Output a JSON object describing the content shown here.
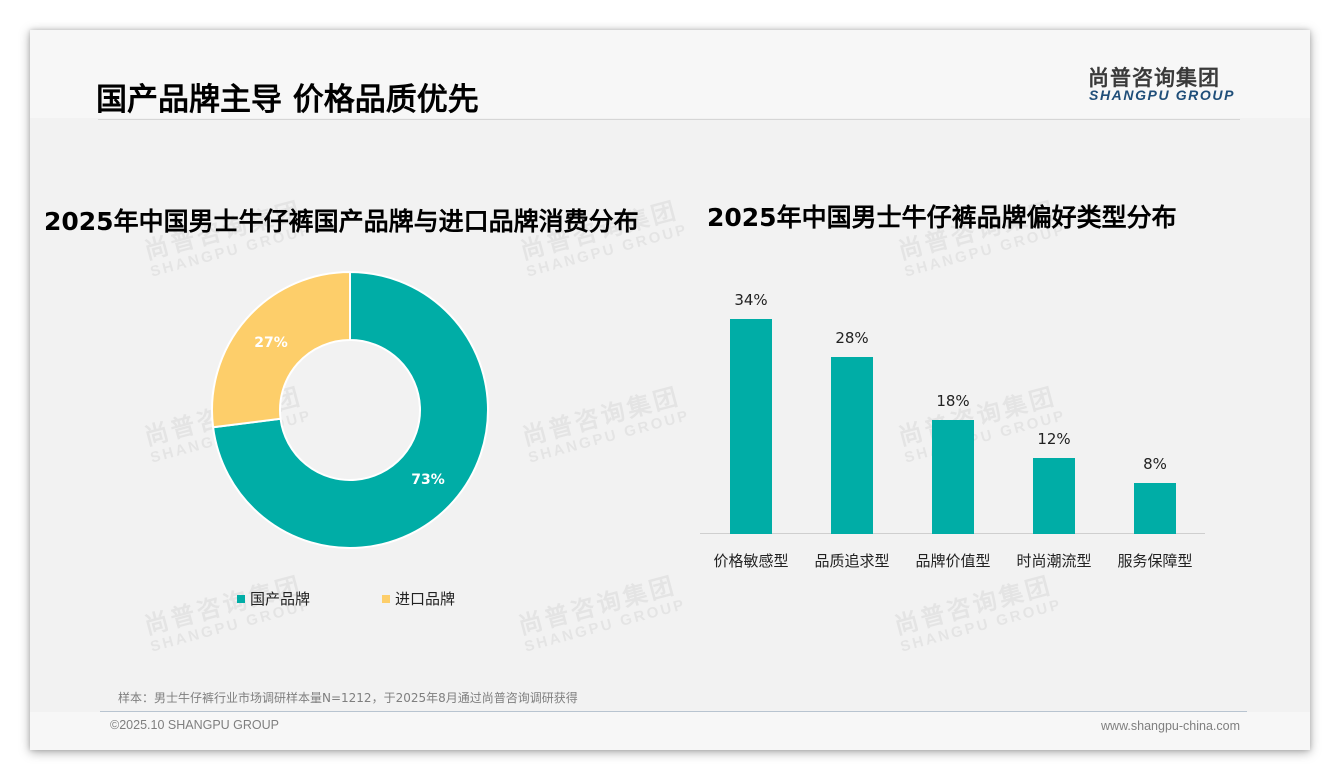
{
  "header": {
    "title": "国产品牌主导 价格品质优先",
    "logo_cn": "尚普咨询集团",
    "logo_en": "SHANGPU GROUP"
  },
  "watermark": {
    "cn": "尚普咨询集团",
    "en": "SHANGPU GROUP"
  },
  "colors": {
    "teal": "#00ADA6",
    "yellow": "#FDCE6A",
    "logo_blue": "#1F4E79"
  },
  "chart_data": [
    {
      "type": "pie",
      "variant": "donut",
      "title": "2025年中国男士牛仔裤国产品牌与进口品牌消费分布",
      "categories": [
        "国产品牌",
        "进口品牌"
      ],
      "values": [
        73,
        27
      ],
      "labels": [
        "73%",
        "27%"
      ],
      "colors": [
        "#00ADA6",
        "#FDCE6A"
      ],
      "legend_position": "bottom"
    },
    {
      "type": "bar",
      "title": "2025年中国男士牛仔裤品牌偏好类型分布",
      "categories": [
        "价格敏感型",
        "品质追求型",
        "品牌价值型",
        "时尚潮流型",
        "服务保障型"
      ],
      "values": [
        34,
        28,
        18,
        12,
        8
      ],
      "labels": [
        "34%",
        "28%",
        "18%",
        "12%",
        "8%"
      ],
      "xlabel": "",
      "ylabel": "",
      "unit": "%",
      "grid": false,
      "color": "#00ADA6"
    }
  ],
  "footer": {
    "sample_note": "样本：男士牛仔裤行业市场调研样本量N=1212，于2025年8月通过尚普咨询调研获得",
    "copyright": "©2025.10 SHANGPU GROUP",
    "website": "www.shangpu-china.com"
  }
}
